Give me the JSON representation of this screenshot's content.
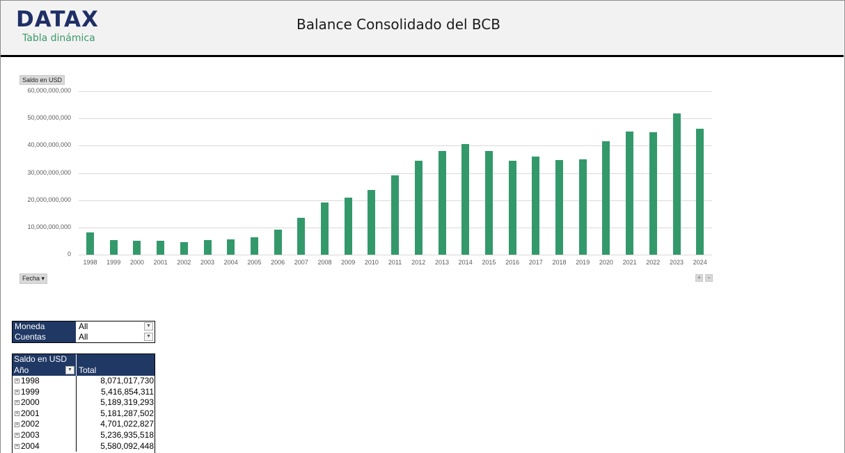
{
  "header": {
    "logo": "DATAX",
    "subtitle": "Tabla dinámica",
    "title": "Balance Consolidado del BCB"
  },
  "chart": {
    "value_field_button": "Saldo en USD",
    "axis_field_button": "Fecha ▾",
    "zoom_in": "+",
    "zoom_out": "−"
  },
  "chart_data": {
    "type": "bar",
    "title": "Balance Consolidado del BCB",
    "xlabel": "Fecha",
    "ylabel": "Saldo en USD",
    "ylim": [
      0,
      60000000000
    ],
    "yticks": [
      "0",
      "10,000,000,000",
      "20,000,000,000",
      "30,000,000,000",
      "40,000,000,000",
      "50,000,000,000",
      "60,000,000,000"
    ],
    "grid": true,
    "legend": "none",
    "bar_color": "#33996b",
    "categories": [
      "1998",
      "1999",
      "2000",
      "2001",
      "2002",
      "2003",
      "2004",
      "2005",
      "2006",
      "2007",
      "2008",
      "2009",
      "2010",
      "2011",
      "2012",
      "2013",
      "2014",
      "2015",
      "2016",
      "2017",
      "2018",
      "2019",
      "2020",
      "2021",
      "2022",
      "2023",
      "2024"
    ],
    "values": [
      8071017730,
      5416854311,
      5189319293,
      5181287502,
      4701022827,
      5236935518,
      5580092448,
      6300000000,
      9100000000,
      13500000000,
      19200000000,
      21000000000,
      23800000000,
      29100000000,
      34500000000,
      38000000000,
      40600000000,
      38000000000,
      34400000000,
      36000000000,
      34700000000,
      35000000000,
      41600000000,
      45100000000,
      44900000000,
      51800000000,
      46200000000
    ]
  },
  "filters": [
    {
      "label": "Moneda",
      "value": "All"
    },
    {
      "label": "Cuentas",
      "value": "All"
    }
  ],
  "pivot": {
    "value_header": "Saldo en USD",
    "row_header": "Año",
    "col_header": "Total",
    "rows": [
      {
        "year": "1998",
        "total": "8,071,017,730",
        "expander": "+"
      },
      {
        "year": "1999",
        "total": "5,416,854,311",
        "expander": "+"
      },
      {
        "year": "2000",
        "total": "5,189,319,293",
        "expander": "+"
      },
      {
        "year": "2001",
        "total": "5,181,287,502",
        "expander": "+"
      },
      {
        "year": "2002",
        "total": "4,701,022,827",
        "expander": "+"
      },
      {
        "year": "2003",
        "total": "5,236,935,518",
        "expander": "+"
      },
      {
        "year": "2004",
        "total": "5,580,092,448",
        "expander": "+"
      }
    ]
  }
}
